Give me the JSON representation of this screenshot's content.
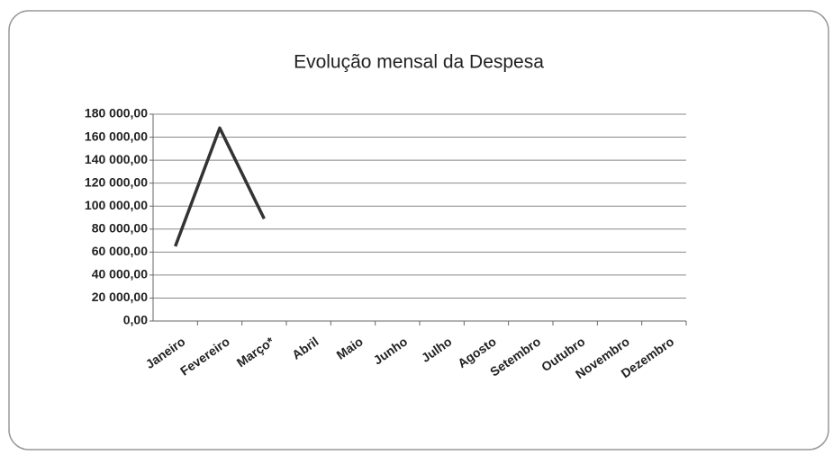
{
  "chart_data": {
    "type": "line",
    "title": "Evolução mensal da Despesa",
    "categories": [
      "Janeiro",
      "Fevereiro",
      "Março*",
      "Abril",
      "Maio",
      "Junho",
      "Julho",
      "Agosto",
      "Setembro",
      "Outubro",
      "Novembro",
      "Dezembro"
    ],
    "series": [
      {
        "name": "Despesa",
        "color": "#333333",
        "values": [
          65000,
          168000,
          89000,
          null,
          null,
          null,
          null,
          null,
          null,
          null,
          null,
          null
        ]
      }
    ],
    "ylim": [
      0,
      180000
    ],
    "yticks": [
      {
        "value": 0,
        "label": "0,00"
      },
      {
        "value": 20000,
        "label": "20 000,00"
      },
      {
        "value": 40000,
        "label": "40 000,00"
      },
      {
        "value": 60000,
        "label": "60 000,00"
      },
      {
        "value": 80000,
        "label": "80 000,00"
      },
      {
        "value": 100000,
        "label": "100 000,00"
      },
      {
        "value": 120000,
        "label": "120 000,00"
      },
      {
        "value": 140000,
        "label": "140 000,00"
      },
      {
        "value": 160000,
        "label": "160 000,00"
      },
      {
        "value": 180000,
        "label": "180 000,00"
      }
    ],
    "grid": true
  }
}
